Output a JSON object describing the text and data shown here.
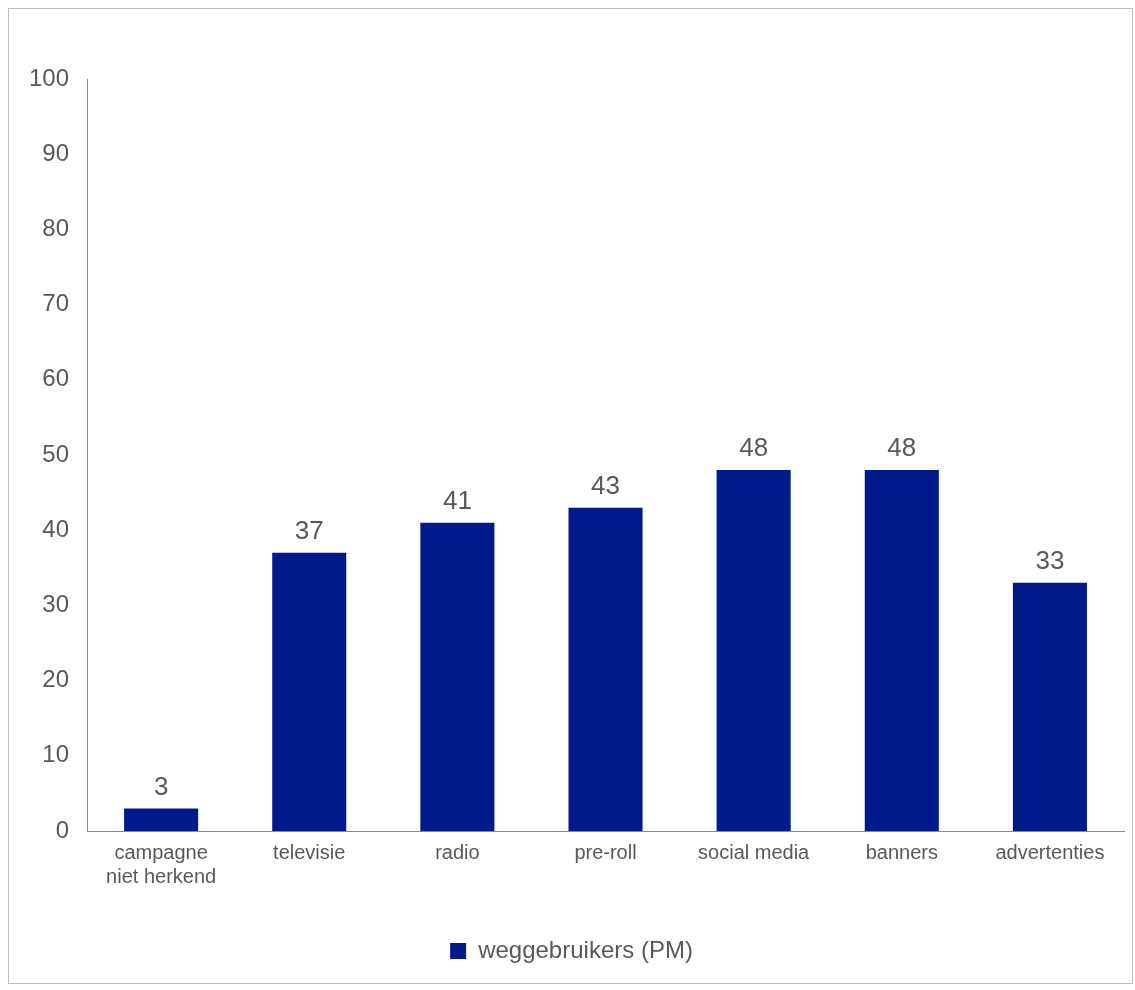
{
  "chart_data": {
    "type": "bar",
    "categories": [
      "campagne niet herkend",
      "televisie",
      "radio",
      "pre-roll",
      "social media",
      "banners",
      "advertenties"
    ],
    "series": [
      {
        "name": "weggebruikers (PM)",
        "color": "#001a8c",
        "values": [
          3,
          37,
          41,
          43,
          48,
          48,
          33
        ]
      }
    ],
    "ylim": [
      0,
      100
    ],
    "yticks": [
      0,
      10,
      20,
      30,
      40,
      50,
      60,
      70,
      80,
      90,
      100
    ],
    "grid": false,
    "legend": "bottom",
    "data_labels": true
  }
}
